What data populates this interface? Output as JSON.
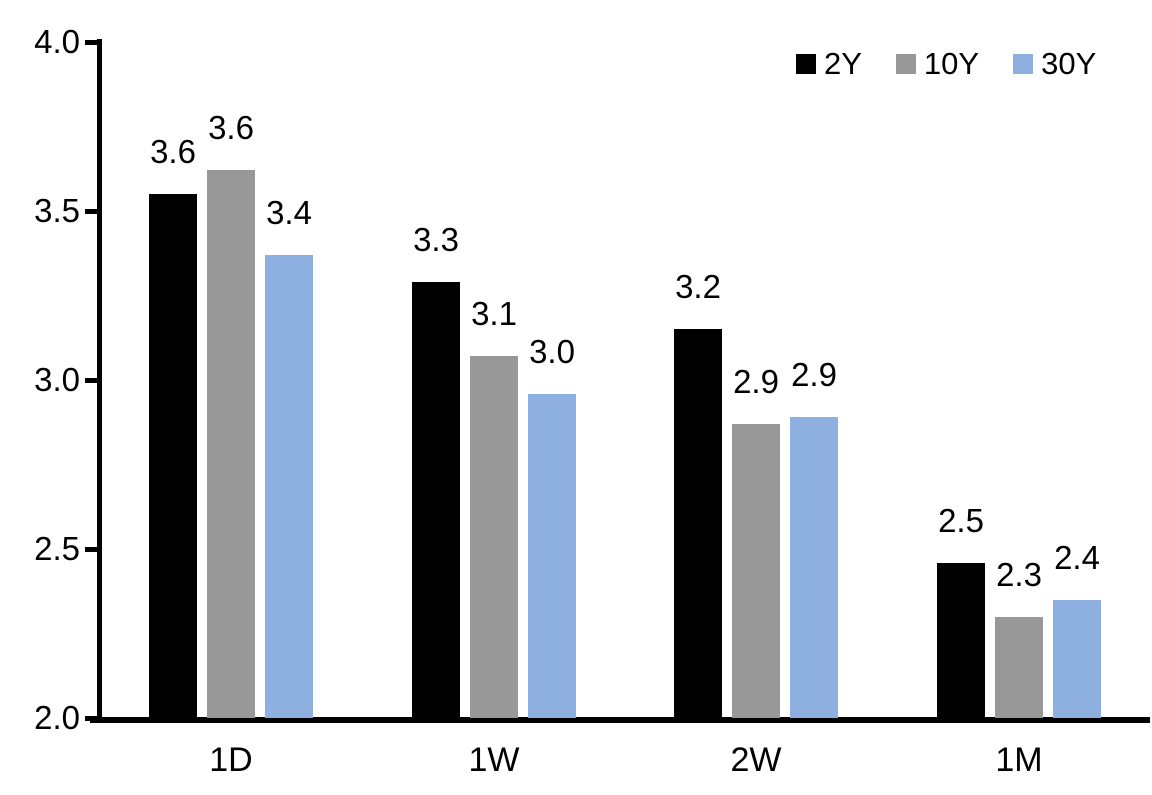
{
  "chart_data": {
    "type": "bar",
    "title": "",
    "categories": [
      "1D",
      "1W",
      "2W",
      "1M"
    ],
    "series": [
      {
        "name": "2Y",
        "color": "#000000",
        "values": [
          3.55,
          3.29,
          3.15,
          2.46
        ],
        "labels": [
          "3.6",
          "3.3",
          "3.2",
          "2.5"
        ]
      },
      {
        "name": "10Y",
        "color": "#989898",
        "values": [
          3.62,
          3.07,
          2.87,
          2.3
        ],
        "labels": [
          "3.6",
          "3.1",
          "2.9",
          "2.3"
        ]
      },
      {
        "name": "30Y",
        "color": "#8EB0E0",
        "values": [
          3.37,
          2.96,
          2.89,
          2.35
        ],
        "labels": [
          "3.4",
          "3.0",
          "2.9",
          "2.4"
        ]
      }
    ],
    "ylim": [
      2.0,
      4.0
    ],
    "yticks": [
      "4.0",
      "3.5",
      "3.0",
      "2.5",
      "2.0"
    ],
    "ytick_values": [
      4.0,
      3.5,
      3.0,
      2.5,
      2.0
    ],
    "xlabel": "",
    "ylabel": "",
    "grid": false,
    "legend_position": "top-right",
    "axis_color": "#000000",
    "background_color": "#FFFFFF"
  }
}
